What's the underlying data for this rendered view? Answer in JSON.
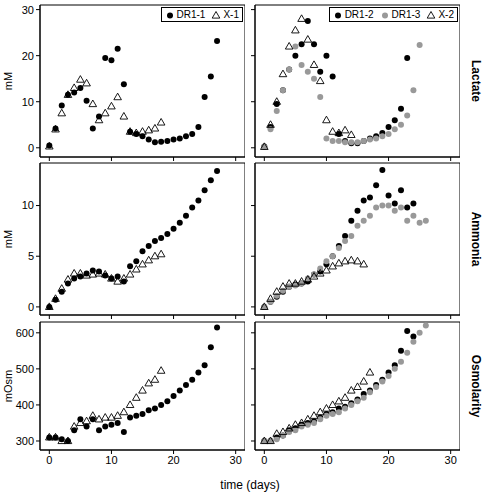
{
  "x_label": "time (days)",
  "chart_data": [
    {
      "type": "scatter",
      "y_label": "mM",
      "xlim": [
        -1.5,
        31.5
      ],
      "xticks": [
        0,
        10,
        20,
        30
      ],
      "ylim": [
        -2,
        31
      ],
      "yticks": [
        0,
        10,
        20,
        30
      ],
      "tick_labels": "y",
      "legend": "upper right",
      "series": [
        {
          "name": "DR1-1",
          "color": "#000000",
          "marker": "circle",
          "x": [
            0,
            1,
            2,
            3,
            4,
            5,
            6,
            7,
            8,
            9,
            10,
            11,
            12,
            13,
            14,
            15,
            16,
            17,
            18,
            19,
            20,
            21,
            22,
            23,
            24,
            25,
            26,
            27
          ],
          "values": [
            0.5,
            4.2,
            9.2,
            11.5,
            12,
            13,
            10.2,
            4.2,
            6.8,
            19.5,
            19,
            21.5,
            13.8,
            3.5,
            3,
            2.5,
            1.8,
            1.2,
            1.3,
            1.5,
            1.8,
            2,
            2.5,
            3,
            4.5,
            11,
            15.5,
            23.2
          ]
        },
        {
          "name": "X-1",
          "color": "#000000",
          "marker": "triangle-open",
          "x": [
            0,
            1,
            2,
            3,
            4,
            5,
            6,
            7,
            8,
            9,
            10,
            11,
            12,
            13,
            14,
            15,
            16,
            17,
            18
          ],
          "values": [
            0.3,
            4,
            7.5,
            11.5,
            13,
            14.8,
            14,
            9.5,
            6,
            7.5,
            9,
            11,
            6.8,
            3.5,
            3.2,
            3.5,
            3.8,
            4.2,
            5.5
          ]
        }
      ]
    },
    {
      "type": "scatter",
      "title": "Lactate",
      "xlim": [
        -1.5,
        31.5
      ],
      "xticks": [
        0,
        10,
        20,
        30
      ],
      "ylim": [
        -2,
        31
      ],
      "yticks": [
        0,
        10,
        20,
        30
      ],
      "tick_labels": false,
      "legend": "upper right",
      "series": [
        {
          "name": "DR1-2",
          "color": "#000000",
          "marker": "circle",
          "x": [
            0,
            1,
            2,
            3,
            4,
            5,
            6,
            7,
            8,
            9,
            10,
            11,
            12,
            13,
            14,
            15,
            16,
            17,
            18,
            19,
            20,
            21,
            22,
            23
          ],
          "values": [
            0.3,
            4.5,
            9.5,
            12.5,
            17,
            20,
            22.5,
            27.5,
            22.5,
            16.5,
            20,
            15.5,
            3,
            1.5,
            1,
            1,
            1.5,
            2,
            2.5,
            3.2,
            4.5,
            6,
            8.5,
            19.5
          ]
        },
        {
          "name": "DR1-3",
          "color": "#999999",
          "marker": "circle",
          "x": [
            0,
            1,
            2,
            3,
            4,
            5,
            6,
            7,
            8,
            9,
            10,
            11,
            12,
            13,
            14,
            15,
            16,
            17,
            18,
            19,
            20,
            21,
            22,
            23,
            24,
            25
          ],
          "values": [
            0.2,
            4,
            8,
            12.5,
            17,
            22,
            18,
            16.5,
            15,
            11,
            2,
            1.5,
            1.5,
            1.2,
            1.2,
            1.2,
            1.5,
            1.8,
            2,
            2.5,
            3,
            4,
            5,
            7,
            12.5,
            22.3
          ]
        },
        {
          "name": "X-2",
          "color": "#000000",
          "marker": "triangle-open",
          "x": [
            0,
            1,
            2,
            3,
            4,
            5,
            6,
            7,
            8,
            9,
            10,
            11,
            12,
            13,
            14
          ],
          "values": [
            0.2,
            5,
            10,
            16,
            22,
            25.5,
            28,
            23.5,
            18,
            14.5,
            6,
            3.5,
            3.2,
            3.8,
            2.8
          ]
        }
      ]
    },
    {
      "type": "scatter",
      "y_label": "mM",
      "xlim": [
        -1.5,
        31.5
      ],
      "xticks": [
        0,
        10,
        20,
        30
      ],
      "ylim": [
        -0.8,
        14.2
      ],
      "yticks": [
        0,
        5,
        10
      ],
      "tick_labels": "y",
      "series": [
        {
          "name": "DR1-1",
          "color": "#000000",
          "marker": "circle",
          "x": [
            0,
            1,
            2,
            3,
            4,
            5,
            6,
            7,
            8,
            9,
            10,
            11,
            12,
            13,
            14,
            15,
            16,
            17,
            18,
            19,
            20,
            21,
            22,
            23,
            24,
            25,
            26,
            27
          ],
          "values": [
            0,
            0.7,
            1.5,
            2.3,
            2.8,
            3,
            3.3,
            3.6,
            3.5,
            3.1,
            2.8,
            3,
            2.5,
            4,
            4.5,
            5.5,
            6,
            6.5,
            6.8,
            7.2,
            7.7,
            8.3,
            9,
            9.8,
            10.5,
            11.5,
            12.5,
            13.4
          ]
        },
        {
          "name": "X-1",
          "color": "#000000",
          "marker": "triangle-open",
          "x": [
            0,
            1,
            2,
            3,
            4,
            5,
            6,
            7,
            8,
            9,
            10,
            11,
            12,
            13,
            14,
            15,
            16,
            17,
            18
          ],
          "values": [
            0,
            0.8,
            1.8,
            2.7,
            3.3,
            3.3,
            3.1,
            3.2,
            3.3,
            3.2,
            2.8,
            2.5,
            2.8,
            3.2,
            3.7,
            4.2,
            4.6,
            5,
            5.2
          ]
        }
      ]
    },
    {
      "type": "scatter",
      "title": "Ammonia",
      "xlim": [
        -1.5,
        31.5
      ],
      "xticks": [
        0,
        10,
        20,
        30
      ],
      "ylim": [
        -0.8,
        14.2
      ],
      "yticks": [
        0,
        5,
        10
      ],
      "tick_labels": false,
      "series": [
        {
          "name": "DR1-2",
          "color": "#000000",
          "marker": "circle",
          "x": [
            0,
            1,
            2,
            3,
            4,
            5,
            6,
            7,
            8,
            9,
            10,
            11,
            12,
            13,
            14,
            15,
            16,
            17,
            18,
            19,
            20,
            21,
            22,
            23,
            24
          ],
          "values": [
            0,
            0.5,
            1,
            1.5,
            2,
            2.2,
            2.3,
            2.5,
            3.2,
            3.5,
            4.2,
            5,
            6,
            7,
            8.5,
            9.5,
            10.5,
            10.8,
            12,
            13.5,
            11,
            10.2,
            11.5,
            9.8,
            10.2
          ]
        },
        {
          "name": "DR1-3",
          "color": "#999999",
          "marker": "circle",
          "x": [
            0,
            1,
            2,
            3,
            4,
            5,
            6,
            7,
            8,
            9,
            10,
            11,
            12,
            13,
            14,
            15,
            16,
            17,
            18,
            19,
            20,
            21,
            22,
            23,
            24,
            25,
            26
          ],
          "values": [
            0,
            0.5,
            1.1,
            1.6,
            2,
            2.1,
            2.3,
            2.8,
            3.2,
            3.8,
            4.5,
            5,
            5.8,
            6.5,
            7,
            8,
            8.5,
            9,
            9.8,
            10,
            10,
            9.5,
            9.8,
            8.5,
            9,
            8.3,
            8.5
          ]
        },
        {
          "name": "X-2",
          "color": "#000000",
          "marker": "triangle-open",
          "x": [
            0,
            1,
            2,
            3,
            4,
            5,
            6,
            7,
            8,
            9,
            10,
            11,
            12,
            13,
            14,
            15,
            16
          ],
          "values": [
            0,
            0.8,
            1.5,
            2,
            2.3,
            2.3,
            2.5,
            2.7,
            3,
            3.3,
            3.6,
            4,
            4.3,
            4.5,
            4.6,
            4.5,
            4.2
          ]
        }
      ]
    },
    {
      "type": "scatter",
      "y_label": "mOsm",
      "xlim": [
        -1.5,
        31.5
      ],
      "xticks": [
        0,
        10,
        20,
        30
      ],
      "ylim": [
        275,
        630
      ],
      "yticks": [
        300,
        400,
        500,
        600
      ],
      "tick_labels": true,
      "series": [
        {
          "name": "DR1-1",
          "color": "#000000",
          "marker": "circle",
          "x": [
            0,
            1,
            2,
            3,
            4,
            5,
            6,
            7,
            8,
            9,
            10,
            11,
            12,
            13,
            14,
            15,
            16,
            17,
            18,
            19,
            20,
            21,
            22,
            23,
            24,
            25,
            26,
            27
          ],
          "values": [
            310,
            310,
            305,
            300,
            330,
            360,
            340,
            360,
            330,
            340,
            345,
            350,
            325,
            365,
            370,
            375,
            385,
            390,
            400,
            410,
            425,
            440,
            455,
            470,
            490,
            510,
            560,
            615
          ]
        },
        {
          "name": "X-1",
          "color": "#000000",
          "marker": "triangle-open",
          "x": [
            0,
            1,
            2,
            3,
            4,
            5,
            6,
            7,
            8,
            9,
            10,
            11,
            12,
            13,
            14,
            15,
            16,
            17,
            18
          ],
          "values": [
            310,
            310,
            300,
            300,
            340,
            350,
            355,
            370,
            360,
            365,
            365,
            370,
            380,
            400,
            420,
            440,
            460,
            470,
            495
          ]
        }
      ]
    },
    {
      "type": "scatter",
      "title": "Osmolarity",
      "xlim": [
        -1.5,
        31.5
      ],
      "xticks": [
        0,
        10,
        20,
        30
      ],
      "ylim": [
        275,
        630
      ],
      "yticks": [
        300,
        400,
        500,
        600
      ],
      "tick_labels": "x",
      "series": [
        {
          "name": "DR1-2",
          "color": "#000000",
          "marker": "circle",
          "x": [
            0,
            1,
            2,
            3,
            4,
            5,
            6,
            7,
            8,
            9,
            10,
            11,
            12,
            13,
            14,
            15,
            16,
            17,
            18,
            19,
            20,
            21,
            22,
            23,
            24
          ],
          "values": [
            300,
            300,
            310,
            315,
            330,
            335,
            345,
            350,
            355,
            365,
            375,
            380,
            390,
            395,
            405,
            415,
            430,
            440,
            455,
            470,
            490,
            510,
            550,
            605,
            590
          ]
        },
        {
          "name": "DR1-3",
          "color": "#999999",
          "marker": "circle",
          "x": [
            0,
            1,
            2,
            3,
            4,
            5,
            6,
            7,
            8,
            9,
            10,
            11,
            12,
            13,
            14,
            15,
            16,
            17,
            18,
            19,
            20,
            21,
            22,
            23,
            24,
            25,
            26
          ],
          "values": [
            300,
            300,
            305,
            315,
            325,
            330,
            340,
            345,
            350,
            360,
            370,
            375,
            380,
            390,
            400,
            410,
            420,
            435,
            450,
            465,
            480,
            500,
            520,
            545,
            575,
            600,
            620
          ]
        },
        {
          "name": "X-2",
          "color": "#000000",
          "marker": "triangle-open",
          "x": [
            0,
            1,
            2,
            3,
            4,
            5,
            6,
            7,
            8,
            9,
            10,
            11,
            12,
            13,
            14,
            15,
            16,
            17
          ],
          "values": [
            300,
            300,
            320,
            325,
            335,
            345,
            350,
            360,
            370,
            380,
            390,
            400,
            410,
            420,
            440,
            450,
            465,
            490
          ]
        }
      ]
    }
  ]
}
